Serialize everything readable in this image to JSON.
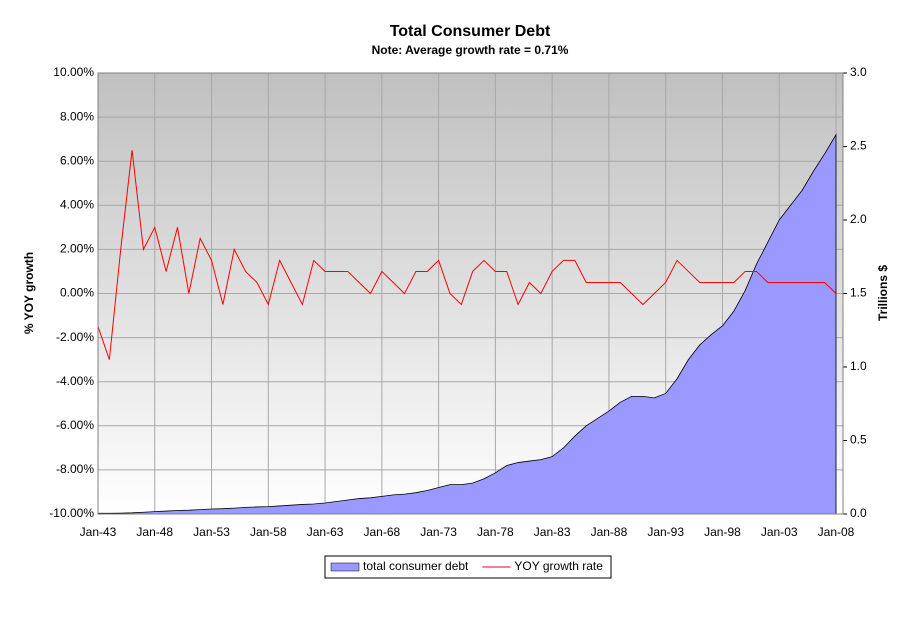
{
  "chart_data": {
    "type": "combo",
    "title": "Total Consumer Debt",
    "subtitle": "Note: Average growth rate = 0.71%",
    "y_label": "% YOY growth",
    "y2_label": "Trillions $",
    "categories": [
      "Jan-43",
      null,
      null,
      null,
      null,
      "Jan-48",
      null,
      null,
      null,
      null,
      "Jan-53",
      null,
      null,
      null,
      null,
      "Jan-58",
      null,
      null,
      null,
      null,
      "Jan-63",
      null,
      null,
      null,
      null,
      "Jan-68",
      null,
      null,
      null,
      null,
      "Jan-73",
      null,
      null,
      null,
      null,
      "Jan-78",
      null,
      null,
      null,
      null,
      "Jan-83",
      null,
      null,
      null,
      null,
      "Jan-88",
      null,
      null,
      null,
      null,
      "Jan-93",
      null,
      null,
      null,
      null,
      "Jan-98",
      null,
      null,
      null,
      null,
      "Jan-03",
      null,
      null,
      null,
      null,
      "Jan-08"
    ],
    "series": [
      {
        "name": "total consumer debt",
        "type": "area",
        "axis": "y2",
        "color": "#9999ff",
        "values": [
          0.005,
          0.005,
          0.006,
          0.008,
          0.012,
          0.016,
          0.02,
          0.024,
          0.026,
          0.03,
          0.034,
          0.036,
          0.04,
          0.045,
          0.048,
          0.05,
          0.055,
          0.06,
          0.065,
          0.068,
          0.075,
          0.085,
          0.095,
          0.105,
          0.11,
          0.12,
          0.13,
          0.135,
          0.145,
          0.16,
          0.18,
          0.2,
          0.2,
          0.21,
          0.24,
          0.28,
          0.33,
          0.35,
          0.36,
          0.37,
          0.39,
          0.45,
          0.53,
          0.6,
          0.65,
          0.7,
          0.76,
          0.8,
          0.8,
          0.79,
          0.82,
          0.92,
          1.05,
          1.15,
          1.22,
          1.28,
          1.38,
          1.52,
          1.7,
          1.85,
          2.0,
          2.1,
          2.2,
          2.33,
          2.45,
          2.58
        ]
      },
      {
        "name": "YOY growth rate",
        "type": "line",
        "axis": "y",
        "color": "#ff0000",
        "values": [
          -1.5,
          -3,
          2,
          6.5,
          2,
          3,
          1,
          3,
          0,
          2.5,
          1.5,
          -0.5,
          2,
          1,
          0.5,
          -0.5,
          1.5,
          0.5,
          -0.5,
          1.5,
          1,
          1,
          1,
          0.5,
          0,
          1,
          0.5,
          0,
          1,
          1,
          1.5,
          0,
          -0.5,
          1,
          1.5,
          1,
          1,
          -0.5,
          0.5,
          0,
          1,
          1.5,
          1.5,
          0.5,
          0.5,
          0.5,
          0.5,
          0,
          -0.5,
          0,
          0.5,
          1.5,
          1,
          0.5,
          0.5,
          0.5,
          0.5,
          1,
          1,
          0.5,
          0.5,
          0.5,
          0.5,
          0.5,
          0.5,
          0
        ]
      }
    ],
    "ylim": [
      -10,
      10
    ],
    "yticks": [
      {
        "value": -10,
        "label": "-10.00%"
      },
      {
        "value": -8,
        "label": "-8.00%"
      },
      {
        "value": -6,
        "label": "-6.00%"
      },
      {
        "value": -4,
        "label": "-4.00%"
      },
      {
        "value": -2,
        "label": "-2.00%"
      },
      {
        "value": 0,
        "label": "0.00%"
      },
      {
        "value": 2,
        "label": "2.00%"
      },
      {
        "value": 4,
        "label": "4.00%"
      },
      {
        "value": 6,
        "label": "6.00%"
      },
      {
        "value": 8,
        "label": "8.00%"
      },
      {
        "value": 10,
        "label": "10.00%"
      }
    ],
    "y2lim": [
      0,
      3
    ],
    "y2ticks": [
      {
        "value": 0,
        "label": "0.0"
      },
      0.5,
      {
        "value": 1,
        "label": "1.0"
      },
      1.5,
      {
        "value": 2,
        "label": "2.0"
      },
      2.5,
      {
        "value": 3,
        "label": "3.0"
      }
    ],
    "grid": true,
    "legend": "bottom"
  }
}
